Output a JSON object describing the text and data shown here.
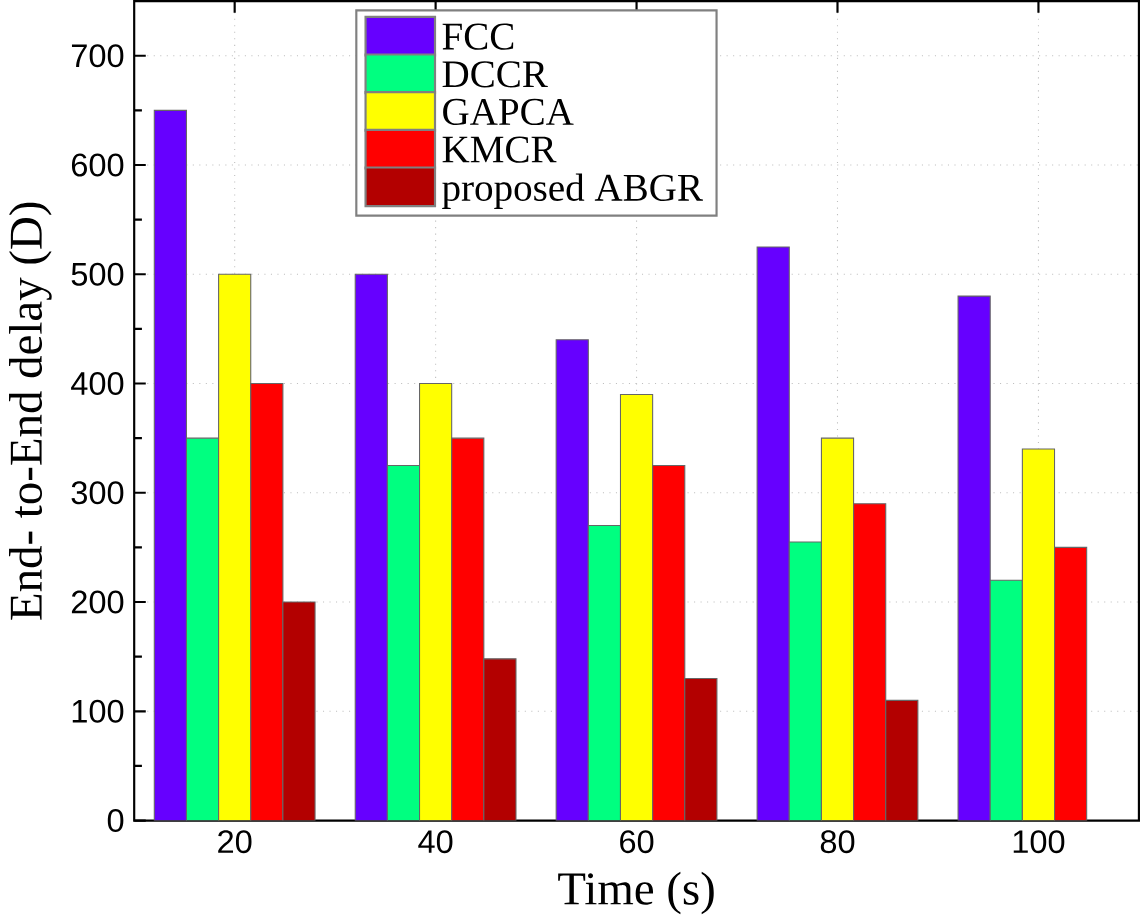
{
  "chart_data": {
    "type": "bar",
    "xlabel": "Time (s)",
    "ylabel": "End- to-End delay (D)",
    "categories": [
      "20",
      "40",
      "60",
      "80",
      "100"
    ],
    "series": [
      {
        "name": "FCC",
        "color": "#6600ff",
        "values": [
          650,
          500,
          440,
          525,
          480
        ]
      },
      {
        "name": "DCCR",
        "color": "#00ff80",
        "values": [
          350,
          325,
          270,
          255,
          220
        ]
      },
      {
        "name": "GAPCA",
        "color": "#ffff00",
        "values": [
          500,
          400,
          390,
          350,
          340
        ]
      },
      {
        "name": "KMCR",
        "color": "#ff0000",
        "values": [
          400,
          350,
          325,
          290,
          250
        ]
      },
      {
        "name": "proposed ABGR",
        "color": "#b30000",
        "values": [
          200,
          148,
          130,
          110,
          null
        ]
      }
    ],
    "ylim": [
      0,
      750
    ],
    "yticks": [
      0,
      100,
      200,
      300,
      400,
      500,
      600,
      700
    ],
    "grid": true,
    "legend": "top"
  }
}
